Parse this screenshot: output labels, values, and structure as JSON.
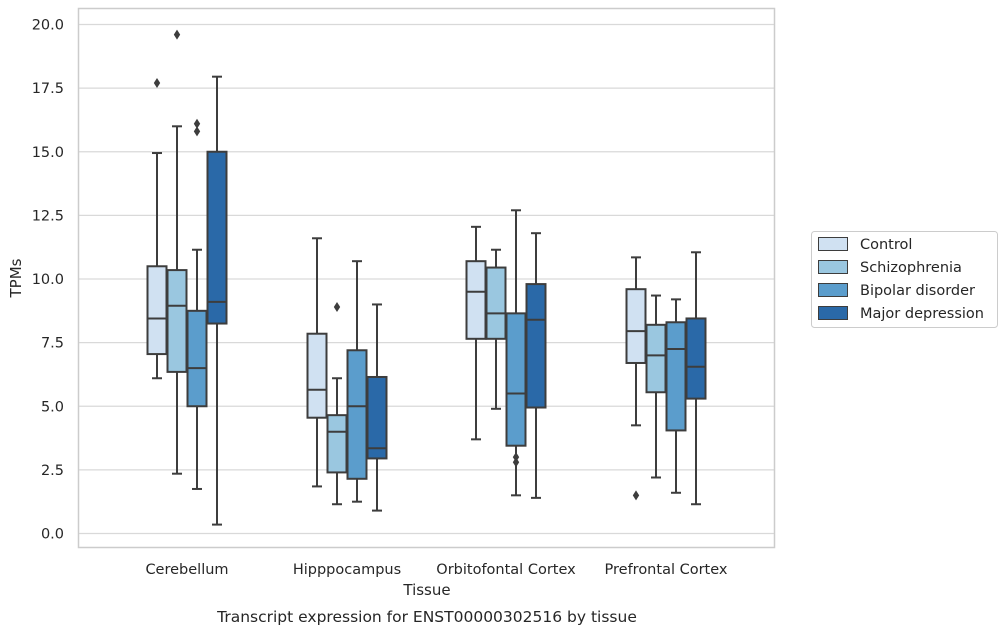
{
  "caption": "Transcript expression for ENST00000302516 by tissue",
  "chart_data": {
    "type": "box",
    "xlabel": "Tissue",
    "ylabel": "TPMs",
    "ylim": [
      -0.6,
      20.6
    ],
    "yticks": [
      0.0,
      2.5,
      5.0,
      7.5,
      10.0,
      12.5,
      15.0,
      17.5,
      20.0
    ],
    "ytick_labels": [
      "0.0",
      "2.5",
      "5.0",
      "7.5",
      "10.0",
      "12.5",
      "15.0",
      "17.5",
      "20.0"
    ],
    "grid": "horizontal",
    "legend_position": "right",
    "categories": [
      "Cerebellum",
      "Hipppocampus",
      "Orbitofontal Cortex",
      "Prefrontal Cortex"
    ],
    "series": [
      {
        "name": "Control",
        "color": "#d0e1f2",
        "boxes": [
          {
            "whislo": 6.1,
            "q1": 7.05,
            "med": 8.45,
            "q3": 10.5,
            "whishi": 14.95,
            "fliers": [
              17.7
            ]
          },
          {
            "whislo": 1.85,
            "q1": 4.55,
            "med": 5.65,
            "q3": 7.85,
            "whishi": 11.6,
            "fliers": []
          },
          {
            "whislo": 3.7,
            "q1": 7.65,
            "med": 9.5,
            "q3": 10.7,
            "whishi": 12.05,
            "fliers": []
          },
          {
            "whislo": 4.25,
            "q1": 6.7,
            "med": 7.95,
            "q3": 9.6,
            "whishi": 10.85,
            "fliers": [
              1.5
            ]
          }
        ]
      },
      {
        "name": "Schizophrenia",
        "color": "#9ac7e0",
        "boxes": [
          {
            "whislo": 2.35,
            "q1": 6.35,
            "med": 8.95,
            "q3": 10.35,
            "whishi": 16.0,
            "fliers": [
              19.6
            ]
          },
          {
            "whislo": 1.15,
            "q1": 2.4,
            "med": 4.0,
            "q3": 4.65,
            "whishi": 6.1,
            "fliers": [
              8.9
            ]
          },
          {
            "whislo": 4.9,
            "q1": 7.65,
            "med": 8.65,
            "q3": 10.45,
            "whishi": 11.15,
            "fliers": []
          },
          {
            "whislo": 2.2,
            "q1": 5.55,
            "med": 7.0,
            "q3": 8.2,
            "whishi": 9.35,
            "fliers": []
          }
        ]
      },
      {
        "name": "Bipolar disorder",
        "color": "#5b9dcc",
        "boxes": [
          {
            "whislo": 1.75,
            "q1": 5.0,
            "med": 6.5,
            "q3": 8.75,
            "whishi": 11.15,
            "fliers": [
              15.8,
              16.1
            ]
          },
          {
            "whislo": 1.25,
            "q1": 2.15,
            "med": 5.0,
            "q3": 7.2,
            "whishi": 10.7,
            "fliers": []
          },
          {
            "whislo": 1.5,
            "q1": 3.45,
            "med": 5.5,
            "q3": 8.65,
            "whishi": 12.7,
            "fliers": [
              2.8,
              3.0
            ]
          },
          {
            "whislo": 1.6,
            "q1": 4.05,
            "med": 7.25,
            "q3": 8.3,
            "whishi": 9.2,
            "fliers": []
          }
        ]
      },
      {
        "name": "Major depression",
        "color": "#2a69a8",
        "boxes": [
          {
            "whislo": 0.35,
            "q1": 8.25,
            "med": 9.1,
            "q3": 15.0,
            "whishi": 17.95,
            "fliers": []
          },
          {
            "whislo": 0.9,
            "q1": 2.95,
            "med": 3.35,
            "q3": 6.15,
            "whishi": 9.0,
            "fliers": []
          },
          {
            "whislo": 1.4,
            "q1": 4.95,
            "med": 8.4,
            "q3": 9.8,
            "whishi": 11.8,
            "fliers": []
          },
          {
            "whislo": 1.15,
            "q1": 5.3,
            "med": 6.55,
            "q3": 8.45,
            "whishi": 11.05,
            "fliers": []
          }
        ]
      }
    ]
  }
}
